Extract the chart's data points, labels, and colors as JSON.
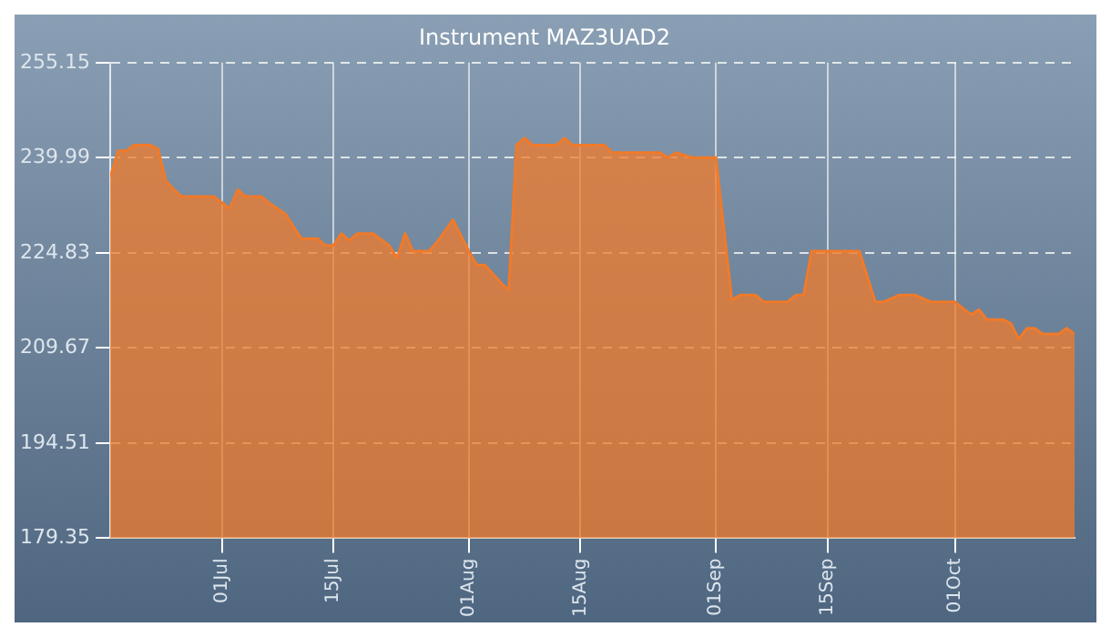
{
  "chart_data": {
    "type": "area",
    "title": "Instrument MAZ3UAD2",
    "x": [
      "--06-17",
      "--06-18",
      "--06-19",
      "--06-20",
      "--06-22",
      "--06-23",
      "--06-24",
      "--06-25",
      "--06-26",
      "--06-30",
      "--07-02",
      "--07-03",
      "--07-04",
      "--07-06",
      "--07-07",
      "--07-09",
      "--07-10",
      "--07-11",
      "--07-13",
      "--07-14",
      "--07-15",
      "--07-16",
      "--07-17",
      "--07-18",
      "--07-20",
      "--07-22",
      "--07-23",
      "--07-24",
      "--07-25",
      "--07-27",
      "--07-28",
      "--07-30",
      "--08-01",
      "--08-02",
      "--08-03",
      "--08-05",
      "--08-06",
      "--08-07",
      "--08-08",
      "--08-09",
      "--08-12",
      "--08-13",
      "--08-14",
      "--08-18",
      "--08-19",
      "--08-25",
      "--08-26",
      "--08-27",
      "--08-29",
      "--09-01",
      "--09-03",
      "--09-04",
      "--09-06",
      "--09-07",
      "--09-10",
      "--09-11",
      "--09-12",
      "--09-13",
      "--09-19",
      "--09-21",
      "--09-22",
      "--09-24",
      "--09-26",
      "--09-28",
      "--10-01",
      "--10-03",
      "--10-04",
      "--10-05",
      "--10-07",
      "--10-08",
      "--10-09",
      "--10-10",
      "--10-11",
      "--10-12",
      "--10-14",
      "--10-15",
      "--10-16"
    ],
    "series": [
      {
        "color": "#f07a2a",
        "values": [
          236.9,
          241.1,
          241.1,
          242.0,
          242.0,
          241.4,
          236.3,
          234.9,
          233.8,
          233.8,
          231.9,
          234.9,
          233.8,
          233.8,
          232.7,
          231.0,
          229.0,
          227.1,
          227.1,
          226.0,
          226.0,
          227.9,
          226.8,
          227.9,
          227.9,
          226.0,
          224.0,
          227.9,
          225.1,
          225.1,
          226.5,
          230.1,
          225.1,
          222.9,
          222.9,
          220.1,
          218.9,
          242.0,
          243.1,
          242.0,
          242.0,
          243.1,
          242.0,
          242.0,
          240.8,
          240.8,
          240.0,
          240.8,
          240.0,
          240.0,
          217.3,
          218.1,
          218.1,
          217.0,
          217.0,
          218.1,
          218.1,
          225.1,
          225.1,
          217.0,
          217.0,
          218.1,
          218.1,
          217.0,
          217.0,
          215.0,
          215.8,
          214.2,
          214.2,
          213.6,
          211.1,
          212.8,
          212.8,
          211.9,
          211.9,
          212.8,
          211.9
        ]
      }
    ],
    "xlim": [
      "--06-17",
      "--10-16"
    ],
    "xticks": [
      {
        "value": "--07-01",
        "label": "01Jul"
      },
      {
        "value": "--07-15",
        "label": "15Jul"
      },
      {
        "value": "--08-01",
        "label": "01Aug"
      },
      {
        "value": "--08-15",
        "label": "15Aug"
      },
      {
        "value": "--09-01",
        "label": "01Sep"
      },
      {
        "value": "--09-15",
        "label": "15Sep"
      },
      {
        "value": "--10-01",
        "label": "01Oct"
      }
    ],
    "ylim": [
      179.35,
      255.15
    ],
    "yticks": [
      179.35,
      194.51,
      209.67,
      224.83,
      239.99,
      255.15
    ],
    "grid": true,
    "legend": false
  }
}
